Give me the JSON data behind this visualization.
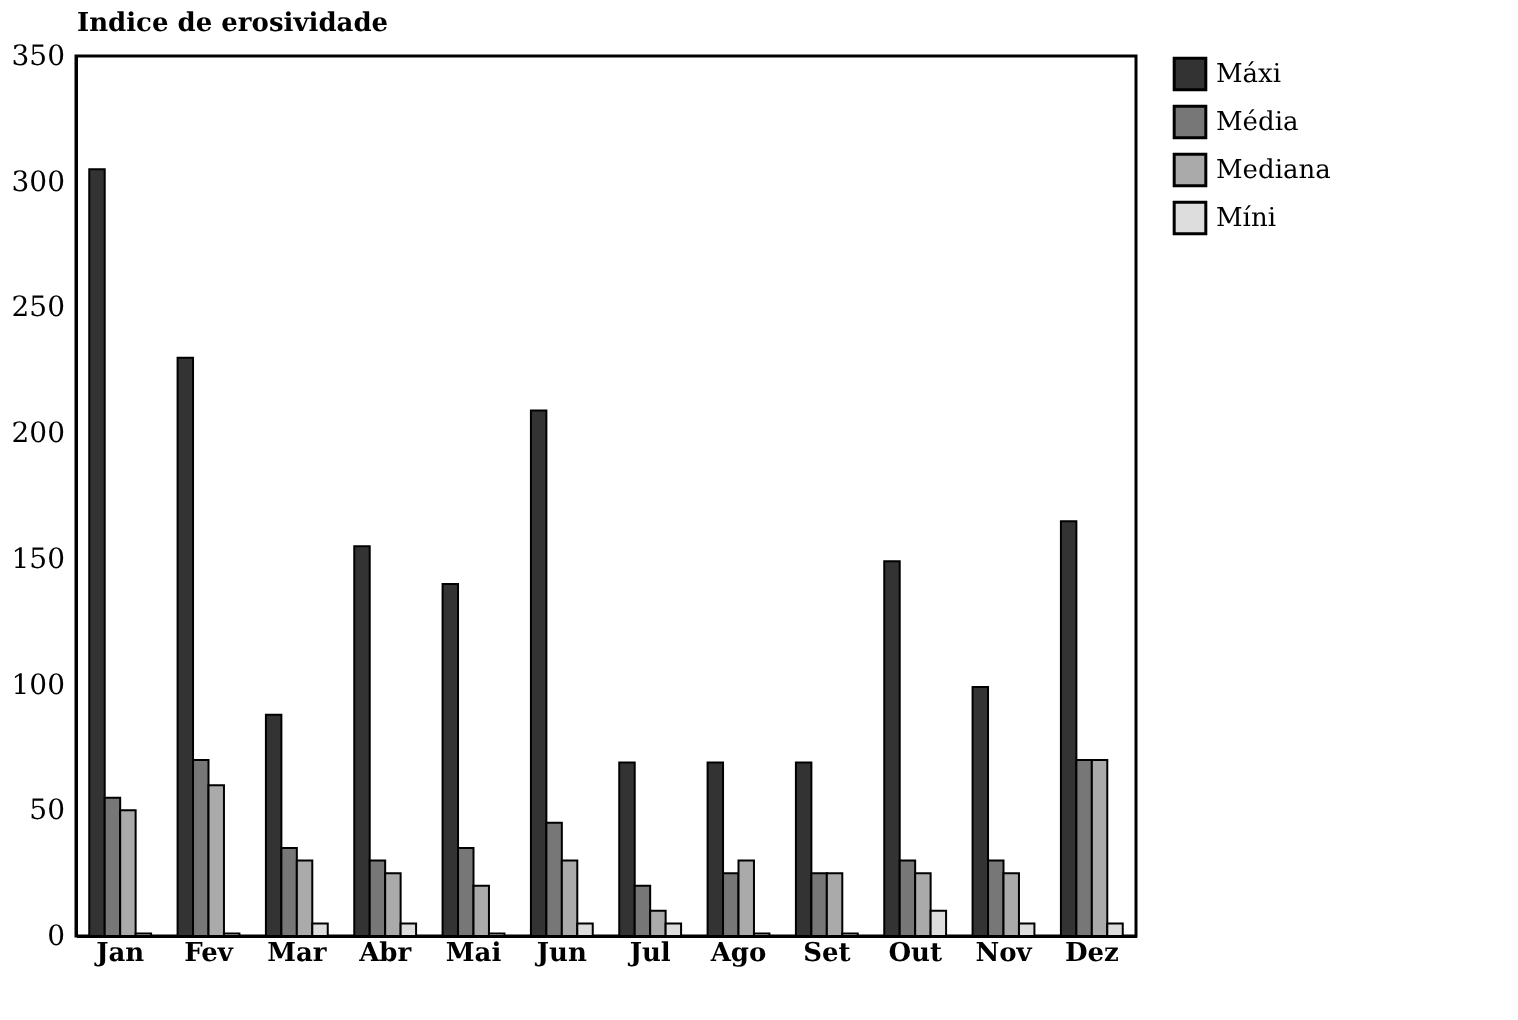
{
  "chart_data": {
    "type": "bar",
    "ylabel": "Indice de erosividade",
    "categories": [
      "Jan",
      "Fev",
      "Mar",
      "Abr",
      "Mai",
      "Jun",
      "Jul",
      "Ago",
      "Set",
      "Out",
      "Nov",
      "Dez"
    ],
    "series": [
      {
        "name": "Máxi",
        "color": "#333333",
        "values": [
          305,
          230,
          88,
          155,
          140,
          209,
          69,
          69,
          69,
          149,
          99,
          165
        ]
      },
      {
        "name": "Média",
        "color": "#777777",
        "values": [
          55,
          70,
          35,
          30,
          35,
          45,
          20,
          25,
          25,
          30,
          30,
          70
        ]
      },
      {
        "name": "Mediana",
        "color": "#aaaaaa",
        "values": [
          50,
          60,
          30,
          25,
          20,
          30,
          10,
          30,
          25,
          25,
          25,
          70
        ]
      },
      {
        "name": "Míni",
        "color": "#dddddd",
        "values": [
          1,
          1,
          5,
          5,
          1,
          5,
          5,
          1,
          1,
          10,
          5,
          5
        ]
      }
    ],
    "ylim": [
      0,
      350
    ],
    "yticks": [
      0,
      50,
      100,
      150,
      200,
      250,
      300,
      350
    ],
    "grid": false,
    "legend": "right"
  }
}
